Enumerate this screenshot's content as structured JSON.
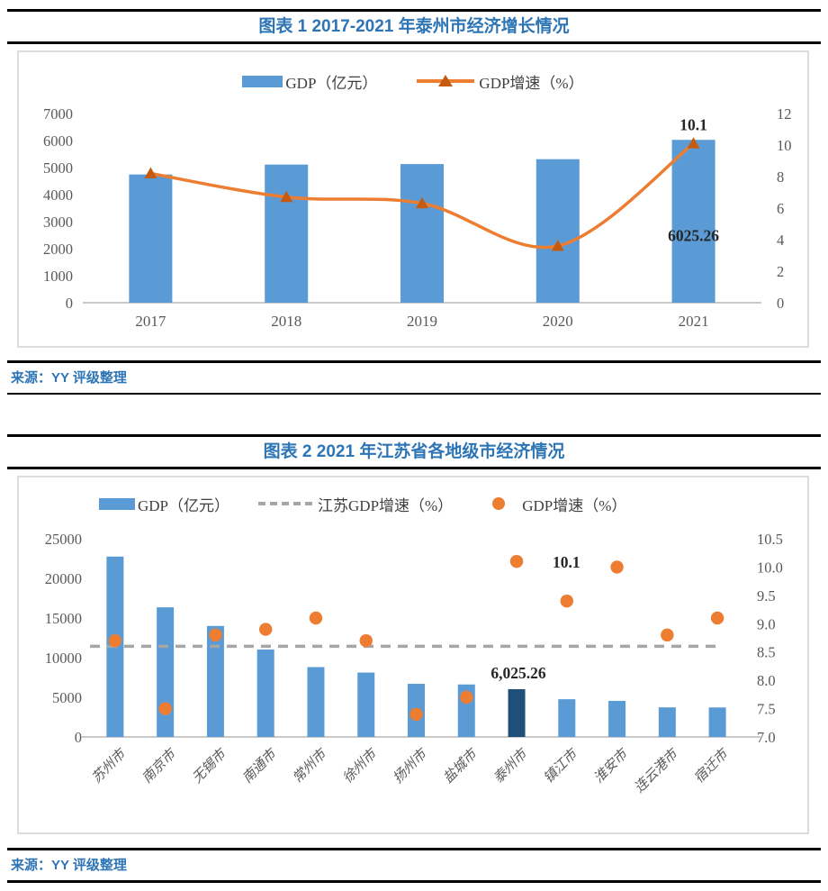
{
  "figure1": {
    "title": "图表 1 2017-2021 年泰州市经济增长情况",
    "source": "来源：YY 评级整理"
  },
  "figure2": {
    "title": "图表 2 2021 年江苏省各地级市经济情况",
    "source": "来源：YY 评级整理"
  },
  "colors": {
    "title_blue": "#2E75B6",
    "bar_blue": "#5B9BD5",
    "bar_navy": "#1F4E79",
    "line_orange": "#ED7D31",
    "marker_dark_orange": "#C55A11",
    "dashed_gray": "#A6A6A6",
    "axis_text": "#595959",
    "axis_line": "#C9C9C9",
    "label_dark": "#262626"
  },
  "chart_data": [
    {
      "id": "fig1",
      "type": "bar",
      "title": "图表 1 2017-2021 年泰州市经济增长情况",
      "categories": [
        "2017",
        "2018",
        "2019",
        "2020",
        "2021"
      ],
      "series": [
        {
          "name": "GDP（亿元）",
          "type": "bar",
          "axis": "left",
          "color": "#5B9BD5",
          "values": [
            4745,
            5110,
            5130,
            5310,
            6025.26
          ]
        },
        {
          "name": "GDP增速（%）",
          "type": "line",
          "axis": "right",
          "color": "#ED7D31",
          "marker": "triangle",
          "marker_color": "#C55A11",
          "values": [
            8.2,
            6.7,
            6.3,
            3.6,
            10.1
          ]
        }
      ],
      "left_axis": {
        "min": 0,
        "max": 7000,
        "step": 1000
      },
      "right_axis": {
        "min": 0,
        "max": 12,
        "step": 2,
        "decimals": 0
      },
      "data_labels": [
        {
          "text": "10.1",
          "series": 1,
          "index": 4
        },
        {
          "text": "6025.26",
          "series": 0,
          "index": 4
        }
      ],
      "legend_position": "top",
      "grid": false
    },
    {
      "id": "fig2",
      "type": "bar",
      "title": "图表 2 2021 年江苏省各地级市经济情况",
      "categories": [
        "苏州市",
        "南京市",
        "无锡市",
        "南通市",
        "常州市",
        "徐州市",
        "扬州市",
        "盐城市",
        "泰州市",
        "镇江市",
        "淮安市",
        "连云港市",
        "宿迁市"
      ],
      "series": [
        {
          "name": "GDP（亿元）",
          "type": "bar",
          "axis": "left",
          "color": "#5B9BD5",
          "highlight_index": 8,
          "highlight_color": "#1F4E79",
          "values": [
            22750,
            16350,
            14000,
            11030,
            8810,
            8120,
            6700,
            6620,
            6025.26,
            4760,
            4550,
            3730,
            3720
          ]
        },
        {
          "name": "江苏GDP增速（%）",
          "type": "dashed_line",
          "axis": "right",
          "color": "#A6A6A6",
          "value": 8.6
        },
        {
          "name": "GDP增速（%）",
          "type": "scatter",
          "axis": "right",
          "color": "#ED7D31",
          "values": [
            8.7,
            7.5,
            8.8,
            8.9,
            9.1,
            8.7,
            7.4,
            7.7,
            10.1,
            9.4,
            10.0,
            8.8,
            9.1
          ]
        }
      ],
      "left_axis": {
        "min": 0,
        "max": 25000,
        "step": 5000
      },
      "right_axis": {
        "min": 7.0,
        "max": 10.5,
        "step": 0.5,
        "decimals": 1
      },
      "data_labels": [
        {
          "text": "6,025.26",
          "series": 0,
          "index": 8
        },
        {
          "text": "10.1",
          "series": 2,
          "index": 8
        }
      ],
      "legend_position": "top",
      "grid": false
    }
  ]
}
